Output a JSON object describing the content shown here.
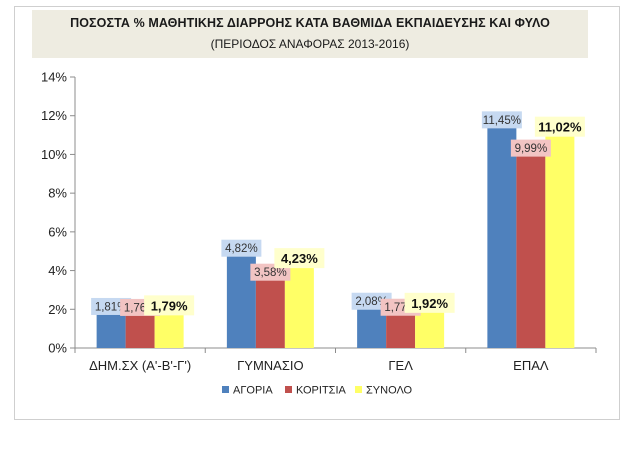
{
  "chart_data": {
    "type": "bar",
    "title": "ΠΟΣΟΣΤΑ % ΜΑΘΗΤΙΚΗΣ ΔΙΑΡΡΟΗΣ ΚΑΤΑ ΒΑΘΜΙΔΑ ΕΚΠΑΙΔΕΥΣΗΣ ΚΑΙ ΦΥΛΟ",
    "subtitle": "(ΠΕΡΙΟΔΟΣ ΑΝΑΦΟΡΑΣ 2013-2016)",
    "categories": [
      "ΔΗΜ.ΣΧ (Α'-Β'-Γ')",
      "ΓΥΜΝΑΣΙΟ",
      "ΓΕΛ",
      "ΕΠΑΛ"
    ],
    "series": [
      {
        "name": "ΑΓΟΡΙΑ",
        "color": "#4f81bd",
        "label_bg": "#c6d9f1",
        "values": [
          1.81,
          4.82,
          2.08,
          11.45
        ],
        "labels": [
          "1,81%",
          "4,82%",
          "2,08%",
          "11,45%"
        ]
      },
      {
        "name": "ΚΟΡΙΤΣΙΑ",
        "color": "#c0504d",
        "label_bg": "#f2c4c3",
        "values": [
          1.76,
          3.58,
          1.77,
          9.99
        ],
        "labels": [
          "1,76%",
          "3,58%",
          "1,77%",
          "9,99%"
        ]
      },
      {
        "name": "ΣΥΝΟΛΟ",
        "color": "#ffff66",
        "label_bg": "#ffffcc",
        "values": [
          1.79,
          4.23,
          1.92,
          11.02
        ],
        "labels": [
          "1,79%",
          "4,23%",
          "1,92%",
          "11,02%"
        ]
      }
    ],
    "ylim": [
      0,
      14
    ],
    "yticks": [
      0,
      2,
      4,
      6,
      8,
      10,
      12,
      14
    ],
    "ytick_labels": [
      "0%",
      "2%",
      "4%",
      "6%",
      "8%",
      "10%",
      "12%",
      "14%"
    ],
    "grid": false,
    "legend": "bottom"
  }
}
